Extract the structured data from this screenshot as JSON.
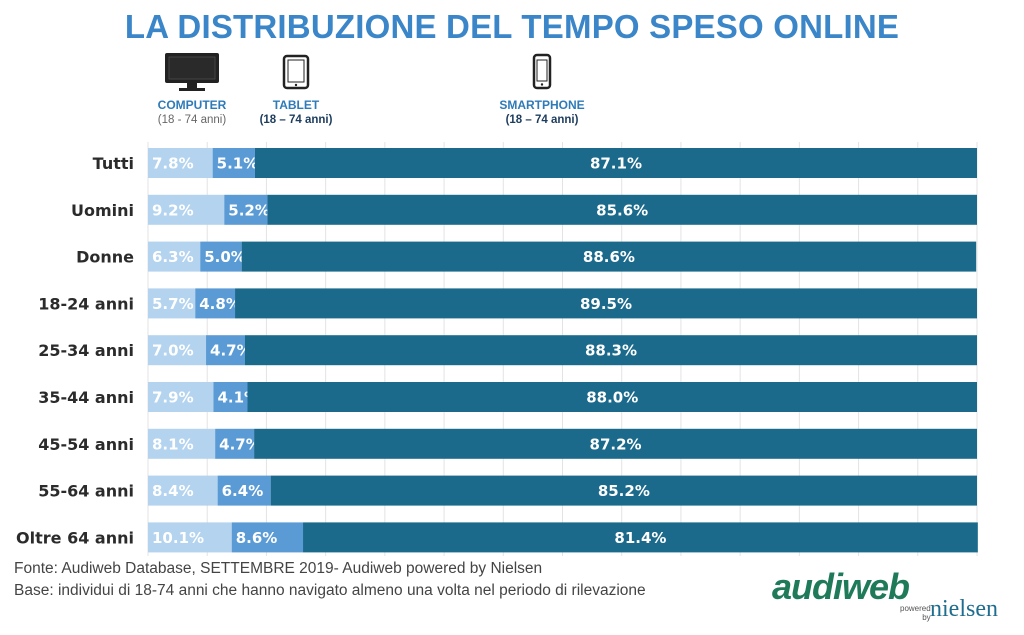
{
  "title": "LA DISTRIBUZIONE DEL TEMPO SPESO ONLINE",
  "legend": [
    {
      "label": "COMPUTER",
      "sub": "(18 - 74 anni)",
      "icon": "monitor-icon",
      "color": "#b3d3ef"
    },
    {
      "label": "TABLET",
      "sub": "(18 – 74 anni)",
      "icon": "tablet-icon",
      "color": "#5b9bd5"
    },
    {
      "label": "SMARTPHONE",
      "sub": "(18 – 74 anni)",
      "icon": "smartphone-icon",
      "color": "#1b6a8c"
    }
  ],
  "chart_data": {
    "type": "bar",
    "orientation": "horizontal",
    "stacked": true,
    "categories": [
      "Tutti",
      "Uomini",
      "Donne",
      "18-24 anni",
      "25-34 anni",
      "35-44 anni",
      "45-54 anni",
      "55-64 anni",
      "Oltre 64 anni"
    ],
    "series": [
      {
        "name": "COMPUTER",
        "color": "#b3d3ef",
        "values": [
          7.8,
          9.2,
          6.3,
          5.7,
          7.0,
          7.9,
          8.1,
          8.4,
          10.1
        ]
      },
      {
        "name": "TABLET",
        "color": "#5b9bd5",
        "values": [
          5.1,
          5.2,
          5.0,
          4.8,
          4.7,
          4.1,
          4.7,
          6.4,
          8.6
        ]
      },
      {
        "name": "SMARTPHONE",
        "color": "#1b6a8c",
        "values": [
          87.1,
          85.6,
          88.6,
          89.5,
          88.3,
          88.0,
          87.2,
          85.2,
          81.4
        ]
      }
    ],
    "value_labels": [
      [
        "7.8%",
        "5.1%",
        "87.1%"
      ],
      [
        "9.2%",
        "5.2%",
        "85.6%"
      ],
      [
        "6.3%",
        "5.0%",
        "88.6%"
      ],
      [
        "5.7%",
        "4.8%",
        "89.5%"
      ],
      [
        "7.0%",
        "4.7%",
        "88.3%"
      ],
      [
        "7.9%",
        "4.1%",
        "88.0%"
      ],
      [
        "8.1%",
        "4.7%",
        "87.2%"
      ],
      [
        "8.4%",
        "6.4%",
        "85.2%"
      ],
      [
        "10.1%",
        "8.6%",
        "81.4%"
      ]
    ],
    "xlim": [
      0,
      100
    ],
    "grid": true
  },
  "footer": {
    "source": "Fonte: Audiweb Database, SETTEMBRE 2019- Audiweb powered by Nielsen",
    "base": "Base: individui di 18-74 anni che hanno navigato almeno una volta nel periodo di rilevazione"
  },
  "logo": {
    "brand": "audiweb",
    "powered": "powered",
    "by": "by",
    "partner": "nielsen"
  }
}
